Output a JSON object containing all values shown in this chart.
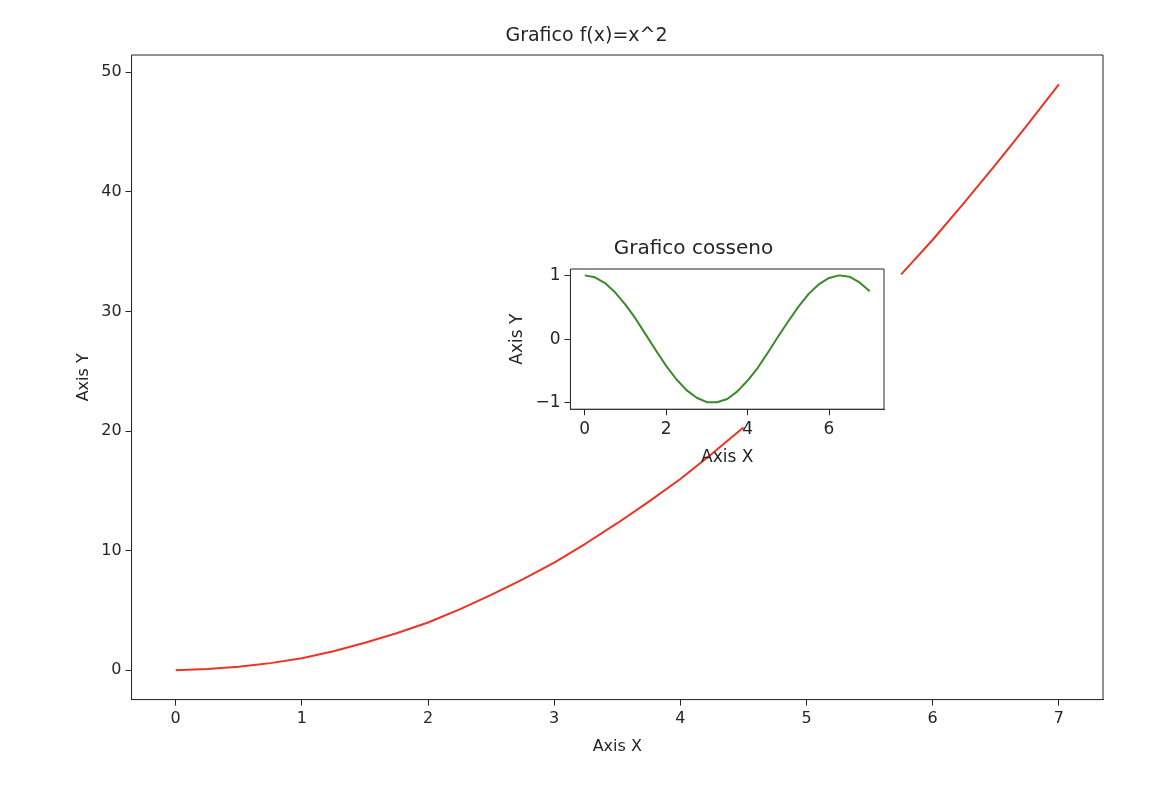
{
  "chart_data": [
    {
      "type": "line",
      "title": "Grafico f(x)=x^2",
      "xlabel": "Axis X",
      "ylabel": "Axis Y",
      "xlim": [
        -0.35,
        7.35
      ],
      "ylim": [
        -2.45,
        51.45
      ],
      "xticks": [
        0,
        1,
        2,
        3,
        4,
        5,
        6,
        7
      ],
      "yticks": [
        0,
        10,
        20,
        30,
        40,
        50
      ],
      "x": [
        0,
        0.25,
        0.5,
        0.75,
        1,
        1.25,
        1.5,
        1.75,
        2,
        2.25,
        2.5,
        2.75,
        3,
        3.25,
        3.5,
        3.75,
        4,
        4.25,
        4.5,
        4.75,
        5,
        5.25,
        5.5,
        5.75,
        6,
        6.25,
        6.5,
        6.75,
        7
      ],
      "series": [
        {
          "color": "#ee3322",
          "values": [
            0,
            0.1,
            0.3,
            0.6,
            1,
            1.6,
            2.3,
            3.1,
            4,
            5.1,
            6.3,
            7.6,
            9,
            10.6,
            12.3,
            14.1,
            16,
            18.1,
            20.3,
            null,
            null,
            null,
            null,
            33.1,
            36,
            39.1,
            42.3,
            45.6,
            49
          ]
        }
      ]
    },
    {
      "type": "line",
      "title": "Grafico cosseno",
      "xlabel": "Axis X",
      "ylabel": "Axis Y",
      "xlim": [
        -0.35,
        7.35
      ],
      "ylim": [
        -1.1,
        1.1
      ],
      "xticks": [
        0,
        2,
        4,
        6
      ],
      "yticks": [
        {
          "value": -1,
          "label": "−1"
        },
        0,
        1
      ],
      "x": [
        0,
        0.25,
        0.5,
        0.75,
        1,
        1.25,
        1.5,
        1.75,
        2,
        2.25,
        2.5,
        2.75,
        3,
        3.25,
        3.5,
        3.75,
        4,
        4.25,
        4.5,
        4.75,
        5,
        5.25,
        5.5,
        5.75,
        6,
        6.25,
        6.5,
        6.75,
        7
      ],
      "series": [
        {
          "color": "#3a8a2a",
          "values": [
            1,
            0.97,
            0.88,
            0.73,
            0.54,
            0.32,
            0.07,
            -0.18,
            -0.42,
            -0.63,
            -0.8,
            -0.92,
            -0.99,
            -0.99,
            -0.94,
            -0.82,
            -0.65,
            -0.45,
            -0.21,
            0.04,
            0.28,
            0.51,
            0.71,
            0.86,
            0.96,
            1,
            0.98,
            0.89,
            0.75
          ]
        }
      ]
    }
  ]
}
